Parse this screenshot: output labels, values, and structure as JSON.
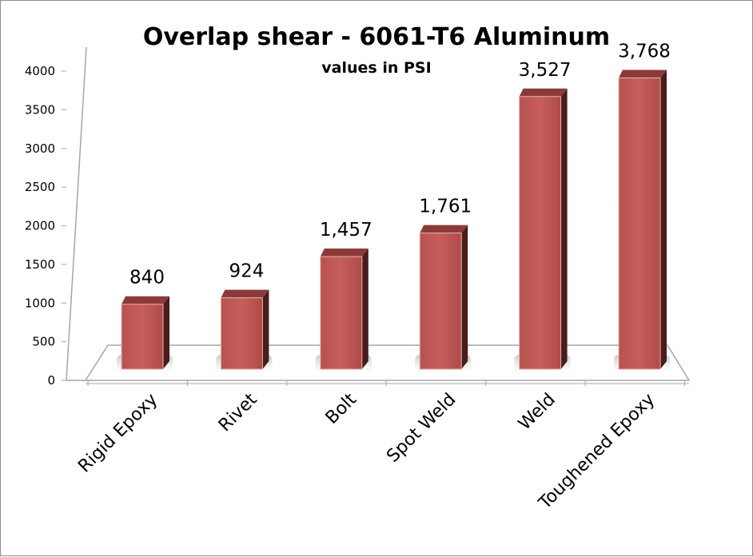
{
  "chart_data": {
    "type": "bar",
    "title": "Overlap shear - 6061-T6 Aluminum",
    "subtitle": "values in PSI",
    "categories": [
      "Rigid Epoxy",
      "Rivet",
      "Bolt",
      "Spot Weld",
      "Weld",
      "Toughened Epoxy"
    ],
    "values": [
      840,
      924,
      1457,
      1761,
      3527,
      3768
    ],
    "data_labels": [
      "840",
      "924",
      "1,457",
      "1,761",
      "3,527",
      "3,768"
    ],
    "yticks": [
      "0",
      "500",
      "1000",
      "1500",
      "2000",
      "2500",
      "3000",
      "3500",
      "4000"
    ],
    "ylim": [
      0,
      4000
    ],
    "grid": false,
    "legend": "none",
    "style": "3d-column",
    "colors": {
      "bar_front": "#c0504d",
      "bar_top": "#8b3a38",
      "bar_side": "#4a1c1c",
      "axis": "#a6a6a6",
      "frame": "#8c8c8c"
    }
  }
}
